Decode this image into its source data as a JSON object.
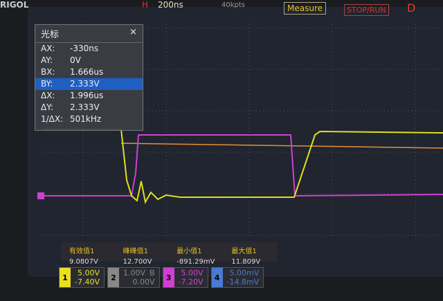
{
  "top": {
    "brand": "RIGOL",
    "timebase_label": "H",
    "timebase": "200ns",
    "memory_depth": "40kpts",
    "measure": "Measure",
    "stop_run": "STOP/RUN",
    "trigger_mode": "D"
  },
  "cursor_panel": {
    "title": "光标",
    "close": "×",
    "selected_row": 3,
    "rows": [
      [
        "AX:",
        "-330ns"
      ],
      [
        "AY:",
        "0V"
      ],
      [
        "BX:",
        "1.666us"
      ],
      [
        "BY:",
        "2.333V"
      ],
      [
        "ΔX:",
        "1.996us"
      ],
      [
        "ΔY:",
        "2.333V"
      ],
      [
        "1/ΔX:",
        "501kHz"
      ]
    ]
  },
  "measurements": [
    [
      "有效值1",
      "9.0807V"
    ],
    [
      "峰峰值1",
      "12.700V"
    ],
    [
      "最小值1",
      "-891.29mV"
    ],
    [
      "最大值1",
      "11.809V"
    ]
  ],
  "channels": [
    {
      "number": "1",
      "color": "#e8e020",
      "scale": "5.00V",
      "offset": "-7.40V"
    },
    {
      "number": "2",
      "color": "#888888",
      "scale": "1.00V",
      "flag": "B",
      "offset": "0.00V"
    },
    {
      "number": "3",
      "color": "#d040d0",
      "scale": "5.00V",
      "offset": "-7.20V"
    },
    {
      "number": "4",
      "color": "#4a7ad0",
      "scale": "5.00mV",
      "offset": "-14.8mV"
    }
  ]
}
